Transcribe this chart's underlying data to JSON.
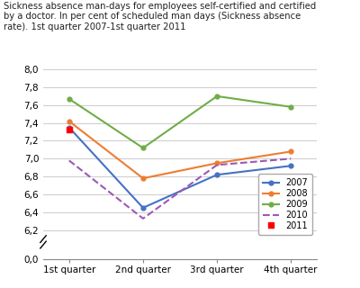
{
  "title": "Sickness absence man-days for employees self-certified and certified\nby a doctor. In per cent of scheduled man days (Sickness absence\nrate). 1st quarter 2007-1st quarter 2011",
  "x_labels": [
    "1st quarter",
    "2nd quarter",
    "3rd quarter",
    "4th quarter"
  ],
  "series": {
    "2007": {
      "values": [
        7.35,
        6.45,
        6.82,
        6.92
      ],
      "color": "#4472C4",
      "linestyle": "-",
      "marker": "o",
      "markersize": 3.5
    },
    "2008": {
      "values": [
        7.42,
        6.78,
        6.95,
        7.08
      ],
      "color": "#ED7D31",
      "linestyle": "-",
      "marker": "o",
      "markersize": 3.5
    },
    "2009": {
      "values": [
        7.67,
        7.12,
        7.7,
        7.58
      ],
      "color": "#70AD47",
      "linestyle": "-",
      "marker": "o",
      "markersize": 3.5
    },
    "2010": {
      "values": [
        6.98,
        6.33,
        6.93,
        7.0
      ],
      "color": "#9B59B6",
      "linestyle": "--",
      "marker": null,
      "markersize": 3.5
    },
    "2011": {
      "values": [
        7.33
      ],
      "color": "#FF0000",
      "linestyle": "-",
      "marker": "s",
      "markersize": 5
    }
  },
  "ylim_main": [
    6.1,
    8.1
  ],
  "ylim_break": [
    0.0,
    0.15
  ],
  "yticks_main": [
    6.2,
    6.4,
    6.6,
    6.8,
    7.0,
    7.2,
    7.4,
    7.6,
    7.8,
    8.0
  ],
  "yticks_break": [
    0.0
  ],
  "background_color": "#ffffff",
  "grid_color": "#cccccc"
}
